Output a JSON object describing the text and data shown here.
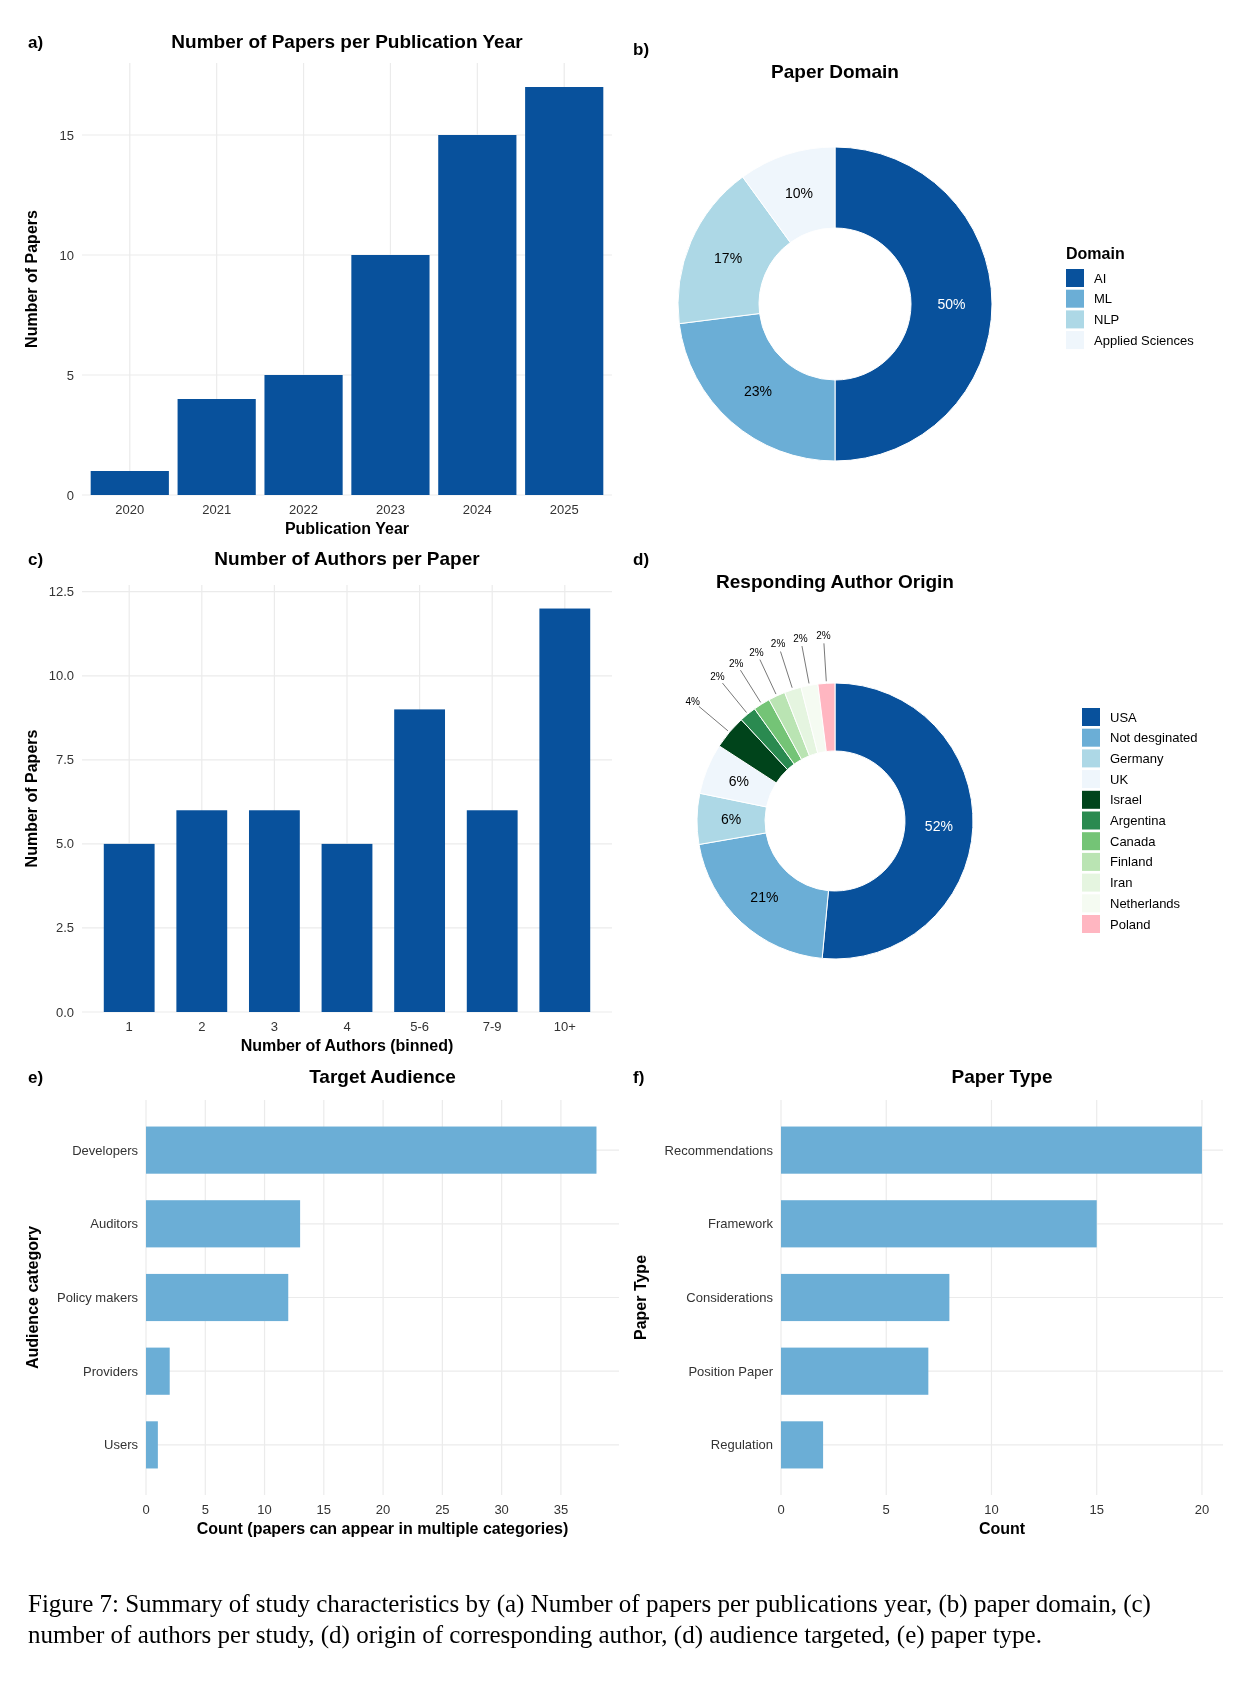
{
  "chart_data": [
    {
      "type": "bar",
      "title": "Number of Papers per Publication Year",
      "xlabel": "Publication Year",
      "ylabel": "Number of Papers",
      "annotations": [
        "a)"
      ],
      "categories": [
        "2020",
        "2021",
        "2022",
        "2023",
        "2024",
        "2025"
      ],
      "values": [
        1,
        4,
        5,
        10,
        15,
        17
      ],
      "color": "#08519c",
      "ylim": [
        0,
        18
      ],
      "yticks": [
        0,
        5,
        10,
        15
      ],
      "grid": true
    },
    {
      "type": "donut",
      "title": "Paper Domain",
      "legend_title": "Domain",
      "annotations": [
        "b)"
      ],
      "legend": "right",
      "categories": [
        "AI",
        "ML",
        "NLP",
        "Applied Sciences"
      ],
      "values": [
        50,
        23,
        17,
        10
      ],
      "colors": [
        "#08519c",
        "#6baed6",
        "#add8e6",
        "#eff6fc"
      ],
      "value_labels": [
        "50%",
        "23%",
        "17%",
        "10%"
      ]
    },
    {
      "type": "bar",
      "title": "Number of Authors per Paper",
      "xlabel": "Number of Authors (binned)",
      "ylabel": "Number of Papers",
      "annotations": [
        "c)"
      ],
      "categories": [
        "1",
        "2",
        "3",
        "4",
        "5-6",
        "7-9",
        "10+"
      ],
      "values": [
        5,
        6,
        6,
        5,
        9,
        6,
        12
      ],
      "color": "#08519c",
      "ylim": [
        0,
        12.7
      ],
      "yticks": [
        {
          "value": 0,
          "label": "0.0"
        },
        {
          "value": 2.5,
          "label": "2.5"
        },
        {
          "value": 5,
          "label": "5.0"
        },
        {
          "value": 7.5,
          "label": "7.5"
        },
        {
          "value": 10,
          "label": "10.0"
        },
        {
          "value": 12.5,
          "label": "12.5"
        }
      ],
      "grid": true
    },
    {
      "type": "donut",
      "title": "Responding Author Origin",
      "annotations": [
        "d)"
      ],
      "legend": "right",
      "categories": [
        "USA",
        "Not desginated",
        "Germany",
        "UK",
        "Israel",
        "Argentina",
        "Canada",
        "Finland",
        "Iran",
        "Netherlands",
        "Poland"
      ],
      "values": [
        52,
        21,
        6,
        6,
        4,
        2,
        2,
        2,
        2,
        2,
        2
      ],
      "colors": [
        "#08519c",
        "#6baed6",
        "#add8e6",
        "#eff6fc",
        "#00441b",
        "#2a8a50",
        "#74c476",
        "#bae4b3",
        "#e5f5e0",
        "#f5fbf2",
        "#ffb6c1"
      ],
      "value_labels": [
        "52%",
        "21%",
        "6%",
        "6%",
        "4%",
        "2%",
        "2%",
        "2%",
        "2%",
        "2%",
        "2%"
      ]
    },
    {
      "type": "bar",
      "orientation": "horizontal",
      "title": "Target Audience",
      "xlabel": "Count (papers can appear in multiple categories)",
      "ylabel": "Audience category",
      "annotations": [
        "e)"
      ],
      "categories": [
        "Developers",
        "Auditors",
        "Policy makers",
        "Providers",
        "Users"
      ],
      "values": [
        38,
        13,
        12,
        2,
        1
      ],
      "color": "#6baed6",
      "xlim": [
        0,
        39.9
      ],
      "xticks": [
        0,
        5,
        10,
        15,
        20,
        25,
        30,
        35
      ],
      "grid": true
    },
    {
      "type": "bar",
      "orientation": "horizontal",
      "title": "Paper Type",
      "xlabel": "Count",
      "ylabel": "Paper Type",
      "annotations": [
        "f)",
        "Figure 7: Summary of study characteristics by (a) Number of papers per publications year, (b) paper domain, (c) number of authors per study, (d) origin of corresponding author, (d) audience targeted, (e) paper type."
      ],
      "categories": [
        "Recommendations",
        "Framework",
        "Considerations",
        "Position Paper",
        "Regulation"
      ],
      "values": [
        20,
        15,
        8,
        7,
        2
      ],
      "color": "#6baed6",
      "xlim": [
        0,
        21
      ],
      "xticks": [
        0,
        5,
        10,
        15,
        20
      ],
      "grid": true
    }
  ]
}
